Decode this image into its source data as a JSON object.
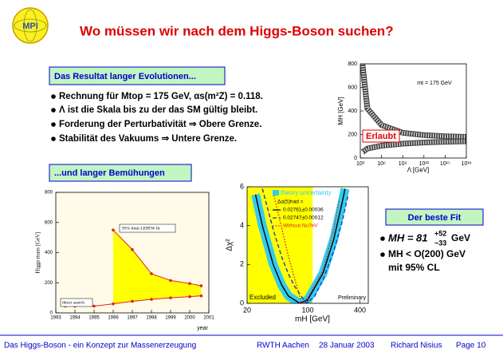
{
  "header": {
    "title": "Wo müssen wir nach dem Higgs-Boson suchen?",
    "logo": "MPI"
  },
  "boxes": {
    "evolution": "Das Resultat langer Evolutionen...",
    "effort": "...und langer Bemühungen",
    "fit": "Der beste Fit"
  },
  "bullets": [
    "Rechnung für Mtop = 175 GeV, αs(m²Z) = 0.118.",
    "Λ ist die Skala bis zu der das SM gültig bleibt.",
    "Forderung der Perturbativität ⇒ Obere Grenze.",
    "Stabilität des Vakuums ⇒ Untere Grenze."
  ],
  "fit_bullets": [
    {
      "text": "MH = 81",
      "sup": "+52",
      "sub": "−33",
      "unit": "GeV"
    },
    "MH < O(200) GeV",
    "mit 95% CL"
  ],
  "footer": {
    "left": "Das Higgs-Boson - ein Konzept zur Massenerzeugung",
    "items": [
      "RWTH Aachen",
      "28 Januar 2003",
      "Richard Nisius",
      "Page 10"
    ]
  },
  "chart_data": [
    {
      "type": "line",
      "log_x": true,
      "x_label": "Λ [GeV]",
      "y_label": "MH [GeV]",
      "annotations": [
        "mt = 175 GeV",
        "Erlaubt"
      ],
      "x": [
        2000,
        10000,
        1000000,
        1000000000,
        1000000000000,
        1000000000000000,
        1000000000000000000
      ],
      "series": [
        {
          "color": "#444444",
          "values": [
            800,
            420,
            280,
            215,
            195,
            185,
            180
          ]
        },
        {
          "color": "#444444",
          "values": [
            50,
            80,
            105,
            122,
            132,
            138,
            142
          ]
        }
      ],
      "xlim": [
        1000,
        1000000000000000000
      ],
      "xticks": [
        {
          "value": 1000,
          "label": "10³"
        },
        {
          "value": 1000000,
          "label": "10⁶"
        },
        {
          "value": 1000000000,
          "label": "10⁹"
        },
        {
          "value": 1000000000000,
          "label": "10¹²"
        },
        {
          "value": 1000000000000000,
          "label": "10¹⁵"
        },
        {
          "value": 1000000000000000000,
          "label": "10¹⁸"
        }
      ],
      "ylim": [
        0,
        800
      ],
      "yticks": [
        0,
        200,
        400,
        600,
        800
      ]
    },
    {
      "type": "line",
      "log_x": false,
      "x_label": "year",
      "y_label": "Higgs mass [GeV]",
      "annotations": [
        "95% limit LEPEW fit",
        "direct search"
      ],
      "fill_color": "#ffff00",
      "series": [
        {
          "color": "#dd2222",
          "x": [
            1996,
            1997,
            1998,
            1999,
            2000,
            2000.6
          ],
          "values": [
            550,
            420,
            260,
            215,
            195,
            180
          ]
        },
        {
          "color": "#dd2222",
          "x": [
            1993.5,
            1994,
            1995,
            1996,
            1997,
            1998,
            1999,
            2000,
            2000.6
          ],
          "values": [
            45,
            45,
            45,
            60,
            77,
            90,
            100,
            108,
            113
          ]
        }
      ],
      "xlim": [
        1993,
        2001
      ],
      "xticks": [
        1993,
        1994,
        1995,
        1996,
        1997,
        1998,
        1999,
        2000,
        2001
      ],
      "ylim": [
        0,
        800
      ],
      "yticks": [
        0,
        200,
        400,
        600,
        800
      ]
    },
    {
      "type": "line",
      "log_x": true,
      "x_label": "mH [GeV]",
      "y_label": "Δχ²",
      "legend_title": "Δα(5)had =",
      "theory_band": {
        "name": "theory uncertainty",
        "color": "#33ccee"
      },
      "excluded": {
        "label": "Excluded",
        "range": [
          20,
          114
        ],
        "color": "#ffff00"
      },
      "annotations": [
        "Preliminary"
      ],
      "series": [
        {
          "name": "0.02761±0.00036",
          "color": "#000000",
          "dash": "none",
          "x": [
            25,
            30,
            40,
            50,
            60,
            81,
            100,
            150,
            200,
            250,
            270
          ],
          "values": [
            5.6,
            4.0,
            2.0,
            0.95,
            0.37,
            0,
            0.18,
            1.55,
            3.3,
            5.2,
            5.9
          ]
        },
        {
          "name": "0.02747±0.00012",
          "color": "#1a3cc8",
          "dash": "5 3",
          "x": [
            30,
            40,
            50,
            60,
            70,
            96,
            120,
            150,
            200,
            250,
            290
          ],
          "values": [
            5.9,
            3.8,
            2.4,
            1.5,
            0.9,
            0,
            0.35,
            1.2,
            2.7,
            4.2,
            5.5
          ]
        },
        {
          "name": "Without NuTeV",
          "color": "#dd2222",
          "dash": "1.5 2",
          "x": [
            40,
            50,
            60,
            85,
            100,
            150,
            200,
            230
          ],
          "values": [
            5.7,
            3.9,
            2.4,
            0,
            0.3,
            1.7,
            3.8,
            5.3
          ]
        }
      ],
      "xlim": [
        20,
        500
      ],
      "xticks": [
        20,
        100,
        400
      ],
      "ylim": [
        0,
        6
      ],
      "yticks": [
        0,
        2,
        4,
        6
      ]
    }
  ]
}
